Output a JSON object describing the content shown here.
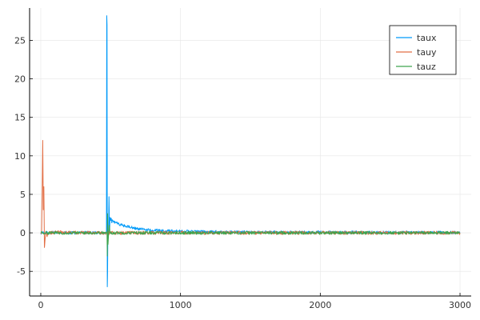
{
  "chart_data": {
    "type": "line",
    "title": "",
    "xlabel": "",
    "ylabel": "",
    "xlim": [
      -80,
      3080
    ],
    "ylim": [
      -8.2,
      29.2
    ],
    "xticks": [
      0,
      1000,
      2000,
      3000
    ],
    "yticks": [
      -5,
      0,
      5,
      10,
      15,
      20,
      25
    ],
    "grid": true,
    "legend_position": "top-right",
    "series": [
      {
        "name": "taux",
        "color": "#009AF9",
        "x": [
          0,
          120,
          240,
          360,
          420,
          460,
          470,
          472,
          474,
          476,
          478,
          480,
          482,
          485,
          488,
          492,
          496,
          500,
          504,
          508,
          512,
          520,
          540,
          560,
          600,
          650,
          700,
          800,
          900,
          1000,
          1200,
          1500,
          2000,
          2500,
          3000
        ],
        "y": [
          0.0,
          0.05,
          0.0,
          0.05,
          0.0,
          0.0,
          0.2,
          28.2,
          27.0,
          -7.0,
          -5.0,
          0.0,
          0.2,
          0.0,
          4.7,
          0.0,
          2.0,
          1.6,
          1.9,
          1.3,
          1.7,
          1.4,
          1.3,
          1.1,
          0.9,
          0.7,
          0.5,
          0.35,
          0.25,
          0.2,
          0.15,
          0.1,
          0.08,
          0.06,
          0.05
        ],
        "noise": 0.18
      },
      {
        "name": "tauy",
        "color": "#E26F46",
        "x": [
          0,
          6,
          10,
          14,
          18,
          22,
          26,
          30,
          36,
          45,
          60,
          100,
          300,
          500,
          1000,
          1500,
          2000,
          2500,
          3000
        ],
        "y": [
          0.0,
          0.2,
          5.6,
          12.0,
          3.0,
          6.0,
          -1.9,
          -1.0,
          0.2,
          -0.5,
          0.0,
          0.1,
          0.0,
          0.0,
          0.0,
          0.0,
          0.0,
          0.0,
          0.0
        ],
        "noise": 0.22
      },
      {
        "name": "tauz",
        "color": "#3DA44D",
        "x": [
          0,
          300,
          460,
          474,
          476,
          478,
          481,
          490,
          496,
          500,
          520,
          700,
          1000,
          1500,
          2000,
          2500,
          3000
        ],
        "y": [
          0.0,
          0.0,
          0.0,
          0.0,
          -3.0,
          2.5,
          -1.5,
          1.0,
          0.0,
          0.0,
          0.0,
          0.0,
          0.0,
          0.0,
          0.0,
          0.0,
          0.0
        ],
        "noise": 0.2
      }
    ]
  }
}
